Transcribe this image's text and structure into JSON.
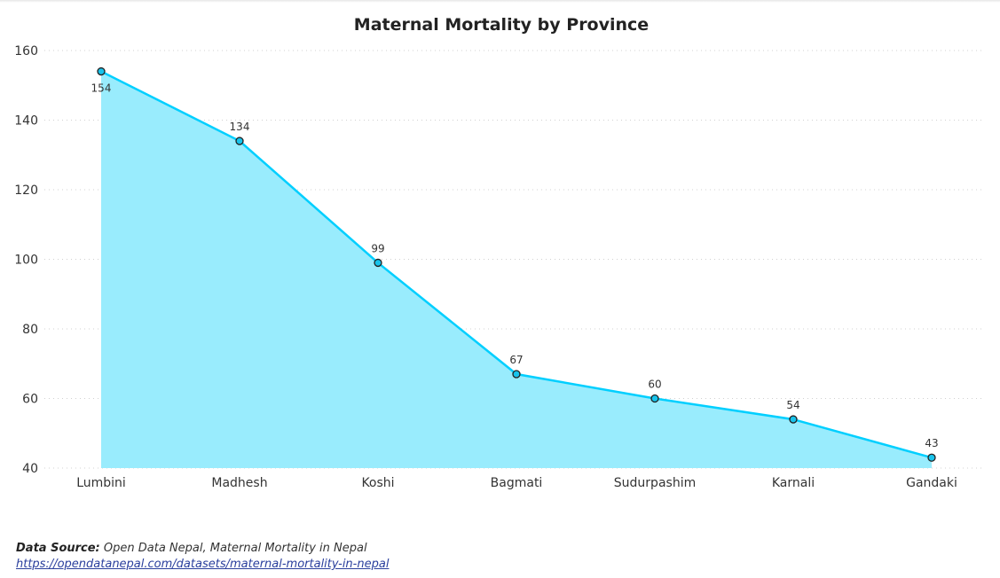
{
  "chart_data": {
    "type": "area",
    "title": "Maternal Mortality by Province",
    "categories": [
      "Lumbini",
      "Madhesh",
      "Koshi",
      "Bagmati",
      "Sudurpashim",
      "Karnali",
      "Gandaki"
    ],
    "values": [
      154,
      134,
      99,
      67,
      60,
      54,
      43
    ],
    "ylim": [
      40,
      160
    ],
    "yticks": [
      40,
      60,
      80,
      100,
      120,
      140,
      160
    ],
    "grid": true,
    "line_color": "#00cfff",
    "fill_color": "#99ecfd",
    "marker_fill": "#18c3eb",
    "marker_stroke": "#222222"
  },
  "footer": {
    "source_label": "Data Source:",
    "source_text": "Open Data Nepal, Maternal Mortality in Nepal",
    "link": "https://opendatanepal.com/datasets/maternal-mortality-in-nepal"
  }
}
